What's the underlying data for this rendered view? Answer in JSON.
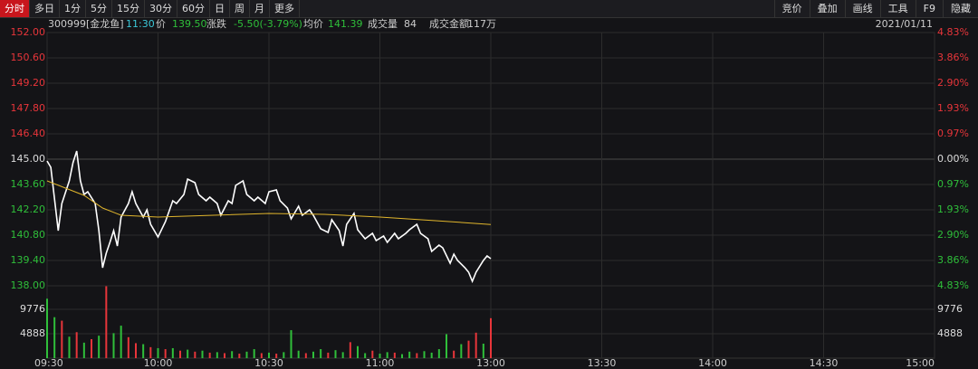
{
  "toolbar": {
    "tabs": [
      "分时",
      "多日",
      "1分",
      "5分",
      "15分",
      "30分",
      "60分",
      "日",
      "周",
      "月",
      "更多"
    ],
    "tools": [
      "竞价",
      "叠加",
      "画线",
      "工具",
      "F9",
      "隐藏"
    ]
  },
  "quote": {
    "code": "300999[金龙鱼]",
    "time": "11:30",
    "price_label": "价",
    "price": "139.50",
    "change_label": "涨跌",
    "change": "-5.50(-3.79%)",
    "avg_label": "均价",
    "avg": "141.39",
    "volume_label": "成交量",
    "volume": "84",
    "amount_label": "成交金额",
    "amount": "117万",
    "date": "2021/01/11"
  },
  "chart_data": [
    {
      "type": "line",
      "x": [
        0,
        1,
        3,
        4,
        6,
        7,
        8,
        9,
        10,
        11,
        13,
        14,
        15,
        16,
        17,
        18,
        19,
        20,
        22,
        23,
        24,
        26,
        27,
        28,
        30,
        32,
        34,
        35,
        37,
        38,
        40,
        41,
        43,
        44,
        46,
        47,
        49,
        50,
        51,
        53,
        54,
        56,
        57,
        59,
        60,
        62,
        63,
        65,
        66,
        68,
        69,
        71,
        72,
        74,
        76,
        77,
        79,
        80,
        81,
        83,
        84,
        86,
        88,
        89,
        91,
        92,
        94,
        95,
        97,
        98,
        100,
        101,
        103,
        104,
        106,
        107,
        109,
        110,
        111,
        113,
        114,
        115,
        116,
        118,
        119,
        120
      ],
      "series": [
        {
          "color": "#ffffff",
          "values": [
            144.9,
            144.55,
            141.05,
            142.55,
            143.8,
            144.8,
            145.45,
            143.8,
            143.05,
            143.2,
            142.55,
            141.05,
            139.0,
            139.8,
            140.4,
            141.05,
            140.2,
            141.8,
            142.55,
            143.2,
            142.55,
            141.8,
            142.2,
            141.4,
            140.7,
            141.55,
            142.7,
            142.55,
            143.05,
            143.9,
            143.7,
            143.05,
            142.7,
            142.9,
            142.55,
            141.9,
            142.7,
            142.55,
            143.55,
            143.8,
            143.05,
            142.7,
            142.9,
            142.55,
            143.2,
            143.3,
            142.7,
            142.3,
            141.7,
            142.4,
            141.9,
            142.2,
            141.9,
            141.15,
            140.95,
            141.65,
            141.05,
            140.2,
            141.4,
            142.0,
            141.1,
            140.6,
            140.9,
            140.5,
            140.75,
            140.4,
            140.9,
            140.6,
            140.9,
            141.1,
            141.4,
            140.9,
            140.6,
            139.9,
            140.25,
            140.1,
            139.25,
            139.75,
            139.4,
            139.0,
            138.75,
            138.25,
            138.75,
            139.4,
            139.65,
            139.5
          ]
        }
      ],
      "xlim": [
        0,
        240
      ],
      "xticks": [
        {
          "value": 0,
          "label": "09:30"
        },
        {
          "value": 30,
          "label": "10:00"
        },
        {
          "value": 60,
          "label": "10:30"
        },
        {
          "value": 90,
          "label": "11:00"
        },
        {
          "value": 120,
          "label": "13:00"
        },
        {
          "value": 150,
          "label": "13:30"
        },
        {
          "value": 180,
          "label": "14:00"
        },
        {
          "value": 210,
          "label": "14:30"
        },
        {
          "value": 240,
          "label": "15:00"
        }
      ],
      "ylim": [
        138,
        152
      ],
      "yticks": [
        {
          "value": 152,
          "label": "152.00"
        },
        {
          "value": 150.6,
          "label": "150.60"
        },
        {
          "value": 149.2,
          "label": "149.20"
        },
        {
          "value": 147.8,
          "label": "147.80"
        },
        {
          "value": 146.4,
          "label": "146.40"
        },
        {
          "value": 145,
          "label": "145.00"
        },
        {
          "value": 143.6,
          "label": "143.60"
        },
        {
          "value": 142.2,
          "label": "142.20"
        },
        {
          "value": 140.8,
          "label": "140.80"
        },
        {
          "value": 139.4,
          "label": "139.40"
        },
        {
          "value": 138,
          "label": "138.00"
        }
      ],
      "y2lim": [
        -4.83,
        4.83
      ],
      "y2ticks": [
        {
          "value": 4.83,
          "label": "4.83%"
        },
        {
          "value": 3.86,
          "label": "3.86%"
        },
        {
          "value": 2.9,
          "label": "2.90%"
        },
        {
          "value": 1.93,
          "label": "1.93%"
        },
        {
          "value": 0.97,
          "label": "0.97%"
        },
        {
          "value": 0,
          "label": "0.00%"
        },
        {
          "value": -0.97,
          "label": "0.97%"
        },
        {
          "value": -1.93,
          "label": "1.93%"
        },
        {
          "value": -2.9,
          "label": "2.90%"
        },
        {
          "value": -3.86,
          "label": "3.86%"
        },
        {
          "value": -4.83,
          "label": "4.83%"
        }
      ],
      "up_color": "#e8353a",
      "down_color": "#2fbf3a",
      "grid": true
    },
    {
      "type": "line",
      "x": [
        0,
        5,
        10,
        15,
        20,
        30,
        45,
        60,
        75,
        90,
        105,
        120
      ],
      "series": [
        {
          "color": "#e0b52c",
          "values": [
            143.8,
            143.4,
            143.0,
            142.3,
            141.9,
            141.8,
            141.9,
            142.0,
            141.95,
            141.8,
            141.6,
            141.39
          ]
        }
      ],
      "xlim": [
        0,
        240
      ],
      "ylim": [
        138,
        152
      ]
    },
    {
      "type": "bar",
      "x": [
        0,
        2,
        4,
        6,
        8,
        10,
        12,
        14,
        16,
        18,
        20,
        22,
        24,
        26,
        28,
        30,
        32,
        34,
        36,
        38,
        40,
        42,
        44,
        46,
        48,
        50,
        52,
        54,
        56,
        58,
        60,
        62,
        64,
        66,
        68,
        70,
        72,
        74,
        76,
        78,
        80,
        82,
        84,
        86,
        88,
        90,
        92,
        94,
        96,
        98,
        100,
        102,
        104,
        106,
        108,
        110,
        112,
        114,
        116,
        118,
        120
      ],
      "values": [
        11900,
        8200,
        7500,
        4300,
        5200,
        3100,
        3800,
        4500,
        14400,
        5000,
        6500,
        4200,
        3000,
        2800,
        2200,
        2000,
        1800,
        2000,
        1500,
        1700,
        1300,
        1500,
        1100,
        1200,
        1000,
        1400,
        900,
        1300,
        1800,
        1000,
        1100,
        900,
        1200,
        5600,
        1500,
        1000,
        1300,
        1800,
        1100,
        1600,
        1200,
        3200,
        2400,
        1000,
        1500,
        900,
        1200,
        1100,
        800,
        1300,
        1000,
        1400,
        1100,
        1800,
        4800,
        1500,
        2800,
        3500,
        5100,
        2900,
        8000
      ],
      "colors": [
        "#2fbf3a",
        "#2fbf3a",
        "#e8353a",
        "#2fbf3a",
        "#e8353a",
        "#2fbf3a",
        "#e8353a",
        "#2fbf3a",
        "#e8353a",
        "#2fbf3a",
        "#2fbf3a",
        "#e8353a",
        "#e8353a",
        "#2fbf3a",
        "#e8353a",
        "#2fbf3a",
        "#e8353a",
        "#2fbf3a",
        "#e8353a",
        "#2fbf3a",
        "#e8353a",
        "#2fbf3a",
        "#e8353a",
        "#2fbf3a",
        "#e8353a",
        "#2fbf3a",
        "#e8353a",
        "#2fbf3a",
        "#2fbf3a",
        "#e8353a",
        "#2fbf3a",
        "#e8353a",
        "#2fbf3a",
        "#2fbf3a",
        "#2fbf3a",
        "#e8353a",
        "#2fbf3a",
        "#2fbf3a",
        "#e8353a",
        "#2fbf3a",
        "#2fbf3a",
        "#e8353a",
        "#2fbf3a",
        "#2fbf3a",
        "#e8353a",
        "#2fbf3a",
        "#2fbf3a",
        "#e8353a",
        "#2fbf3a",
        "#2fbf3a",
        "#e8353a",
        "#2fbf3a",
        "#2fbf3a",
        "#2fbf3a",
        "#2fbf3a",
        "#e8353a",
        "#2fbf3a",
        "#e8353a",
        "#e8353a",
        "#2fbf3a",
        "#e8353a"
      ],
      "xlim": [
        0,
        240
      ],
      "ylim": [
        0,
        14484
      ],
      "yticks": [
        4888,
        9776
      ]
    }
  ]
}
